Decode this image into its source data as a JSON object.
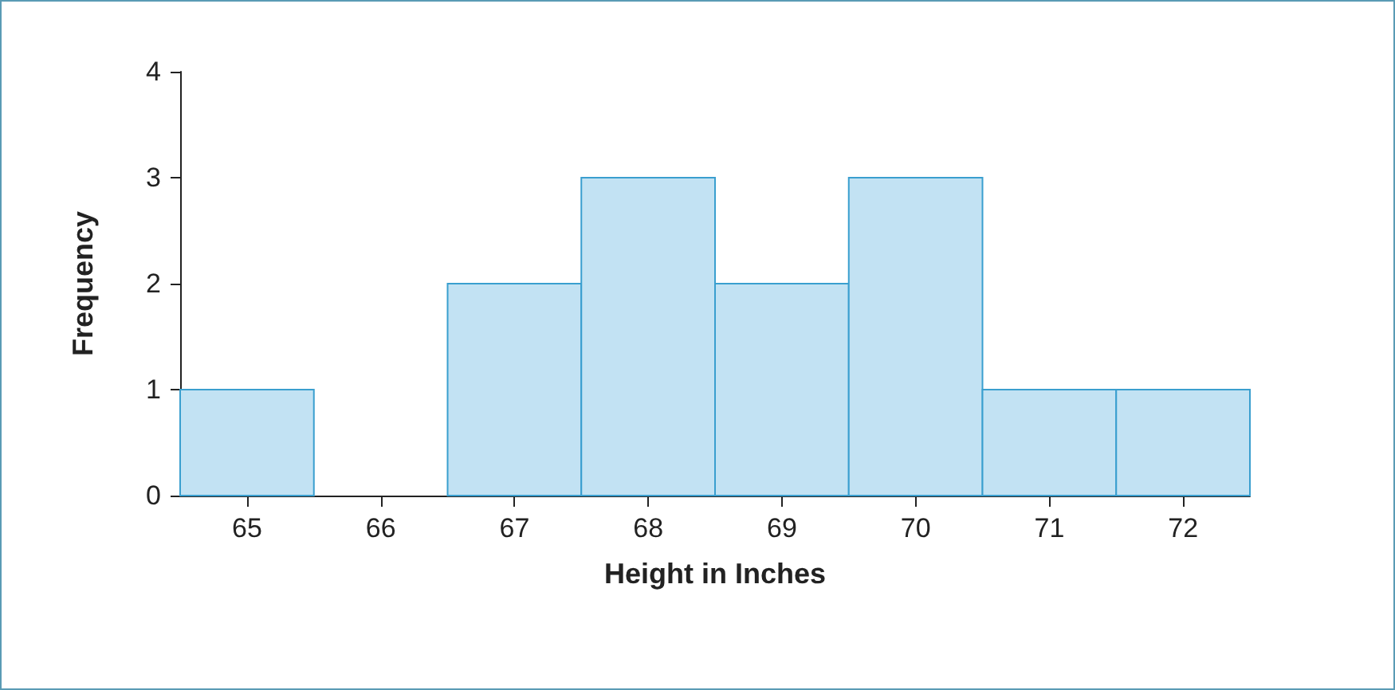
{
  "chart_data": {
    "type": "histogram",
    "xlabel": "Height in Inches",
    "ylabel": "Frequency",
    "bins": [
      64.5,
      65.5,
      66.5,
      67.5,
      68.5,
      69.5,
      70.5,
      71.5,
      72.5
    ],
    "values": [
      1,
      0,
      2,
      3,
      2,
      3,
      1,
      1
    ],
    "color": "#c2e2f3",
    "xlim": [
      64.5,
      72.5
    ],
    "xticks": [
      65,
      66,
      67,
      68,
      69,
      70,
      71,
      72
    ],
    "ylim": [
      0,
      4
    ],
    "yticks": [
      0,
      1,
      2,
      3,
      4
    ],
    "grid": false
  }
}
